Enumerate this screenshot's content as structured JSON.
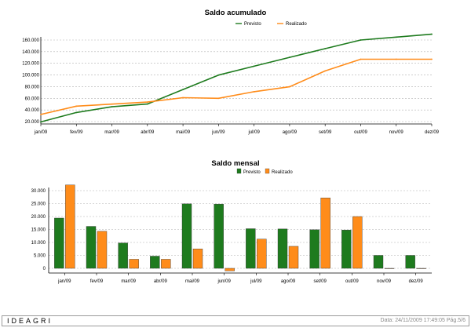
{
  "colors": {
    "previsto": "#1e7b1e",
    "realizado": "#ff8c1a",
    "grid": "#b0b0b0",
    "axis": "#000000"
  },
  "chart_data": [
    {
      "type": "line",
      "title": "Saldo acumulado",
      "categories": [
        "jan/09",
        "fev/09",
        "mar/09",
        "abr/09",
        "mai/09",
        "jun/09",
        "jul/09",
        "ago/09",
        "set/09",
        "out/09",
        "nov/09",
        "dez/09"
      ],
      "series": [
        {
          "name": "Previsto",
          "values": [
            19400,
            35600,
            45400,
            50100,
            75000,
            99800,
            115100,
            130300,
            145200,
            160000,
            165000,
            170000
          ]
        },
        {
          "name": "Realizado",
          "values": [
            32200,
            46500,
            50000,
            53500,
            61000,
            60000,
            71300,
            79800,
            107000,
            127000,
            127000,
            127000
          ]
        }
      ],
      "ylim": [
        20000,
        160000
      ],
      "yticks": [
        20000,
        40000,
        60000,
        80000,
        100000,
        120000,
        140000,
        160000
      ],
      "ytick_labels": [
        "20.000",
        "40.000",
        "60.000",
        "80.000",
        "100.000",
        "120.000",
        "140.000",
        "160.000"
      ],
      "grid": true,
      "legend": "top-right"
    },
    {
      "type": "bar",
      "title": "Saldo mensal",
      "categories": [
        "jan/09",
        "fev/09",
        "mar/09",
        "abr/09",
        "mai/09",
        "jun/09",
        "jul/09",
        "ago/09",
        "set/09",
        "out/09",
        "nov/09",
        "dez/09"
      ],
      "series": [
        {
          "name": "Previsto",
          "values": [
            19400,
            16200,
            9800,
            4700,
            24900,
            24800,
            15300,
            15200,
            14900,
            14800,
            5000,
            5000
          ]
        },
        {
          "name": "Realizado",
          "values": [
            32200,
            14300,
            3500,
            3500,
            7500,
            -1000,
            11300,
            8500,
            27200,
            20000,
            0,
            0
          ]
        }
      ],
      "ylim": [
        0,
        30000
      ],
      "yticks": [
        0,
        5000,
        10000,
        15000,
        20000,
        25000,
        30000
      ],
      "ytick_labels": [
        "0",
        "5.000",
        "10.000",
        "15.000",
        "20.000",
        "25.000",
        "30.000"
      ],
      "grid": true,
      "legend": "top-center"
    }
  ],
  "footer": {
    "brand": "IDEAGRI",
    "info": "Data: 24/11/2009 17:49:05 Pág.5/6"
  }
}
